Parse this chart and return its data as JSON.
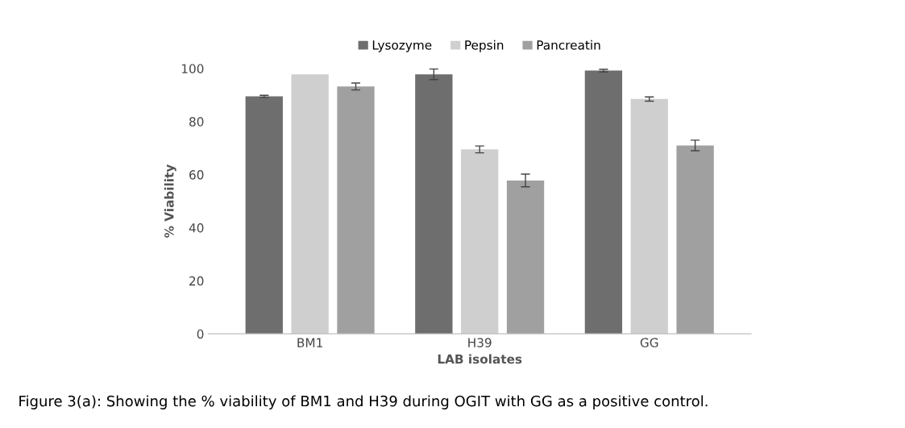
{
  "chart_data": {
    "type": "bar",
    "xlabel": "LAB isolates",
    "ylabel": "% Viability",
    "categories": [
      "BM1",
      "H39",
      "GG"
    ],
    "series": [
      {
        "name": "Lysozyme",
        "color": "#6e6e6e",
        "values": [
          89.5,
          97.8,
          99.2
        ],
        "errors": [
          0.4,
          2,
          0.5
        ]
      },
      {
        "name": "Pepsin",
        "color": "#cfcfcf",
        "values": [
          97.8,
          69.5,
          88.5
        ],
        "errors": [
          null,
          1.3,
          0.8
        ]
      },
      {
        "name": "Pancreatin",
        "color": "#a0a0a0",
        "values": [
          93.2,
          57.8,
          71
        ],
        "errors": [
          1.3,
          2.4,
          2
        ]
      }
    ],
    "ylim": [
      0,
      100
    ],
    "yticks": [
      0,
      20,
      40,
      60,
      80,
      100
    ],
    "grid": false,
    "legend": "top",
    "annotations": [
      "Figure 3(a): Showing the % viability of BM1 and H39 during OGIT with GG as a positive control."
    ]
  }
}
